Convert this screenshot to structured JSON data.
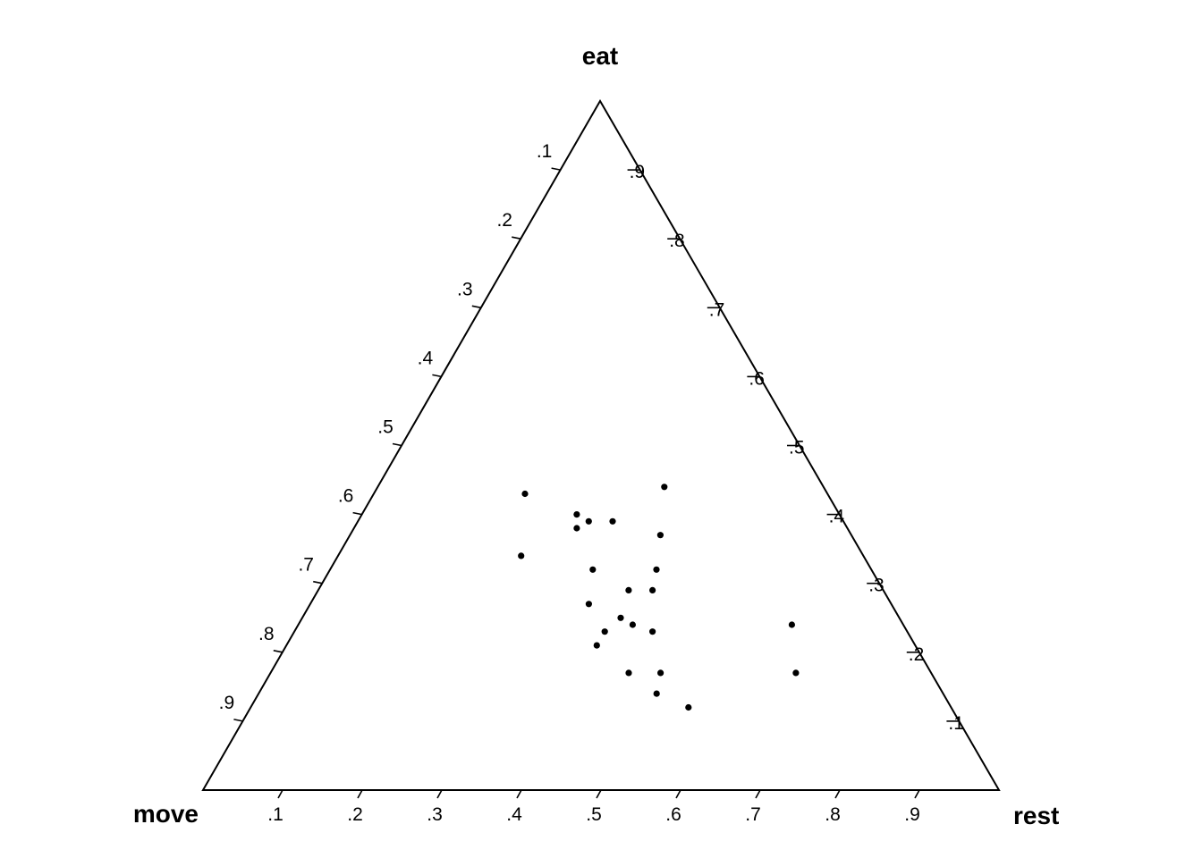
{
  "chart_data": {
    "type": "scatter",
    "subtype": "ternary",
    "title": "",
    "vertex_labels": {
      "top": "eat",
      "left": "move",
      "right": "rest"
    },
    "tick_labels": [
      ".1",
      ".2",
      ".3",
      ".4",
      ".5",
      ".6",
      ".7",
      ".8",
      ".9"
    ],
    "grid": false,
    "axis_range": [
      0,
      1
    ],
    "points": [
      {
        "eat": 0.43,
        "move": 0.38,
        "rest": 0.19
      },
      {
        "eat": 0.4,
        "move": 0.33,
        "rest": 0.27
      },
      {
        "eat": 0.38,
        "move": 0.34,
        "rest": 0.28
      },
      {
        "eat": 0.39,
        "move": 0.32,
        "rest": 0.29
      },
      {
        "eat": 0.39,
        "move": 0.29,
        "rest": 0.32
      },
      {
        "eat": 0.44,
        "move": 0.2,
        "rest": 0.36
      },
      {
        "eat": 0.37,
        "move": 0.24,
        "rest": 0.39
      },
      {
        "eat": 0.34,
        "move": 0.43,
        "rest": 0.23
      },
      {
        "eat": 0.32,
        "move": 0.35,
        "rest": 0.33
      },
      {
        "eat": 0.32,
        "move": 0.27,
        "rest": 0.41
      },
      {
        "eat": 0.29,
        "move": 0.32,
        "rest": 0.39
      },
      {
        "eat": 0.29,
        "move": 0.29,
        "rest": 0.42
      },
      {
        "eat": 0.27,
        "move": 0.38,
        "rest": 0.35
      },
      {
        "eat": 0.25,
        "move": 0.35,
        "rest": 0.4
      },
      {
        "eat": 0.24,
        "move": 0.34,
        "rest": 0.42
      },
      {
        "eat": 0.23,
        "move": 0.38,
        "rest": 0.39
      },
      {
        "eat": 0.23,
        "move": 0.32,
        "rest": 0.45
      },
      {
        "eat": 0.21,
        "move": 0.4,
        "rest": 0.39
      },
      {
        "eat": 0.24,
        "move": 0.14,
        "rest": 0.62
      },
      {
        "eat": 0.17,
        "move": 0.38,
        "rest": 0.45
      },
      {
        "eat": 0.17,
        "move": 0.34,
        "rest": 0.49
      },
      {
        "eat": 0.17,
        "move": 0.17,
        "rest": 0.66
      },
      {
        "eat": 0.14,
        "move": 0.36,
        "rest": 0.5
      },
      {
        "eat": 0.12,
        "move": 0.33,
        "rest": 0.55
      }
    ]
  }
}
